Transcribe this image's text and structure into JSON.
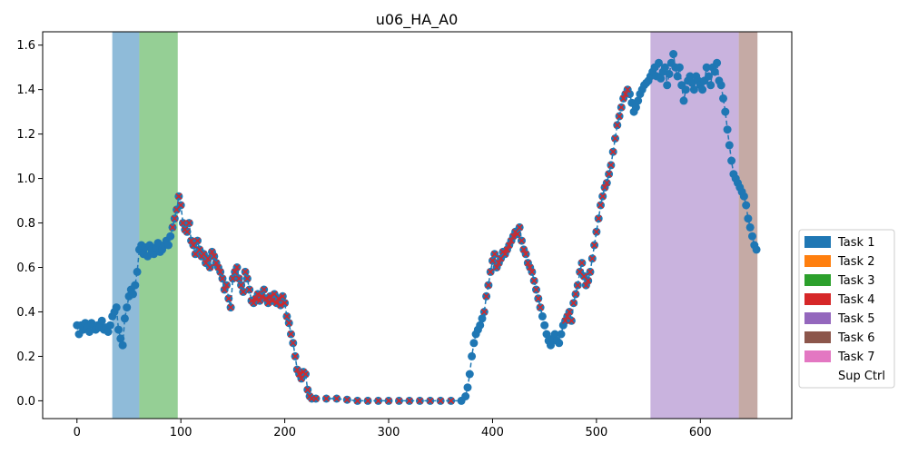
{
  "chart_data": {
    "type": "scatter",
    "title": "u06_HA_A0",
    "xlim": [
      -33,
      688
    ],
    "ylim": [
      -0.08,
      1.66
    ],
    "x_ticks": [
      0,
      100,
      200,
      300,
      400,
      500,
      600
    ],
    "y_ticks": [
      0.0,
      0.2,
      0.4,
      0.6,
      0.8,
      1.0,
      1.2,
      1.4,
      1.6
    ],
    "grid": false,
    "legend_position": "right",
    "colors": {
      "series": "#1f77b4",
      "task_marker": "#d62728"
    },
    "task_spans": [
      {
        "task": "Task 1",
        "start": 34,
        "end": 60,
        "color": "#1f77b4"
      },
      {
        "task": "Task 3",
        "start": 60,
        "end": 97,
        "color": "#2ca02c"
      },
      {
        "task": "Task 5",
        "start": 552,
        "end": 637,
        "color": "#9467bd"
      },
      {
        "task": "Task 6",
        "start": 637,
        "end": 655,
        "color": "#8c564b"
      }
    ],
    "legend": [
      {
        "label": "Task 1",
        "color": "#1f77b4"
      },
      {
        "label": "Task 2",
        "color": "#ff7f0e"
      },
      {
        "label": "Task 3",
        "color": "#2ca02c"
      },
      {
        "label": "Task 4",
        "color": "#d62728"
      },
      {
        "label": "Task 5",
        "color": "#9467bd"
      },
      {
        "label": "Task 6",
        "color": "#8c564b"
      },
      {
        "label": "Task 7",
        "color": "#e377c2"
      },
      {
        "label": "Sup Ctrl",
        "color": "#ffffff"
      }
    ],
    "series": [
      {
        "points": [
          [
            0,
            0.34
          ],
          [
            2,
            0.3
          ],
          [
            4,
            0.34
          ],
          [
            6,
            0.32
          ],
          [
            8,
            0.35
          ],
          [
            10,
            0.33
          ],
          [
            12,
            0.31
          ],
          [
            14,
            0.35
          ],
          [
            16,
            0.34
          ],
          [
            18,
            0.32
          ],
          [
            20,
            0.34
          ],
          [
            22,
            0.33
          ],
          [
            24,
            0.36
          ],
          [
            26,
            0.32
          ],
          [
            28,
            0.33
          ],
          [
            30,
            0.31
          ],
          [
            32,
            0.34
          ],
          [
            34,
            0.38
          ],
          [
            36,
            0.4
          ],
          [
            38,
            0.42
          ],
          [
            40,
            0.32
          ],
          [
            42,
            0.28
          ],
          [
            44,
            0.25
          ],
          [
            46,
            0.37
          ],
          [
            48,
            0.42
          ],
          [
            50,
            0.47
          ],
          [
            52,
            0.5
          ],
          [
            54,
            0.48
          ],
          [
            56,
            0.52
          ],
          [
            58,
            0.58
          ],
          [
            60,
            0.68
          ],
          [
            62,
            0.7
          ],
          [
            64,
            0.66
          ],
          [
            66,
            0.69
          ],
          [
            68,
            0.65
          ],
          [
            70,
            0.7
          ],
          [
            72,
            0.68
          ],
          [
            74,
            0.66
          ],
          [
            76,
            0.69
          ],
          [
            78,
            0.71
          ],
          [
            80,
            0.67
          ],
          [
            82,
            0.68
          ],
          [
            84,
            0.7
          ],
          [
            86,
            0.72
          ],
          [
            88,
            0.7
          ],
          [
            90,
            0.74
          ],
          [
            92,
            0.78
          ],
          [
            94,
            0.82
          ],
          [
            96,
            0.86
          ],
          [
            98,
            0.92
          ],
          [
            100,
            0.88
          ],
          [
            102,
            0.8
          ],
          [
            104,
            0.77
          ],
          [
            106,
            0.76
          ],
          [
            108,
            0.8
          ],
          [
            110,
            0.72
          ],
          [
            112,
            0.7
          ],
          [
            114,
            0.66
          ],
          [
            116,
            0.72
          ],
          [
            118,
            0.68
          ],
          [
            120,
            0.65
          ],
          [
            122,
            0.66
          ],
          [
            124,
            0.62
          ],
          [
            126,
            0.64
          ],
          [
            128,
            0.6
          ],
          [
            130,
            0.67
          ],
          [
            132,
            0.65
          ],
          [
            134,
            0.62
          ],
          [
            136,
            0.6
          ],
          [
            138,
            0.58
          ],
          [
            140,
            0.55
          ],
          [
            142,
            0.5
          ],
          [
            144,
            0.52
          ],
          [
            146,
            0.46
          ],
          [
            148,
            0.42
          ],
          [
            150,
            0.55
          ],
          [
            152,
            0.58
          ],
          [
            154,
            0.6
          ],
          [
            156,
            0.55
          ],
          [
            158,
            0.52
          ],
          [
            160,
            0.49
          ],
          [
            162,
            0.58
          ],
          [
            164,
            0.55
          ],
          [
            166,
            0.5
          ],
          [
            168,
            0.45
          ],
          [
            170,
            0.44
          ],
          [
            172,
            0.46
          ],
          [
            174,
            0.48
          ],
          [
            176,
            0.45
          ],
          [
            178,
            0.47
          ],
          [
            180,
            0.5
          ],
          [
            182,
            0.46
          ],
          [
            184,
            0.44
          ],
          [
            186,
            0.47
          ],
          [
            188,
            0.45
          ],
          [
            190,
            0.48
          ],
          [
            192,
            0.44
          ],
          [
            194,
            0.46
          ],
          [
            196,
            0.43
          ],
          [
            198,
            0.47
          ],
          [
            200,
            0.44
          ],
          [
            202,
            0.38
          ],
          [
            204,
            0.35
          ],
          [
            206,
            0.3
          ],
          [
            208,
            0.26
          ],
          [
            210,
            0.2
          ],
          [
            212,
            0.14
          ],
          [
            214,
            0.12
          ],
          [
            216,
            0.1
          ],
          [
            218,
            0.13
          ],
          [
            220,
            0.12
          ],
          [
            222,
            0.05
          ],
          [
            224,
            0.02
          ],
          [
            226,
            0.01
          ],
          [
            230,
            0.01
          ],
          [
            240,
            0.01
          ],
          [
            250,
            0.01
          ],
          [
            260,
            0.005
          ],
          [
            270,
            0.0
          ],
          [
            280,
            0.0
          ],
          [
            290,
            0.0
          ],
          [
            300,
            0.0
          ],
          [
            310,
            0.0
          ],
          [
            320,
            0.0
          ],
          [
            330,
            0.0
          ],
          [
            340,
            0.0
          ],
          [
            350,
            0.0
          ],
          [
            360,
            0.0
          ],
          [
            370,
            0.0
          ],
          [
            374,
            0.02
          ],
          [
            376,
            0.06
          ],
          [
            378,
            0.12
          ],
          [
            380,
            0.2
          ],
          [
            382,
            0.26
          ],
          [
            384,
            0.3
          ],
          [
            386,
            0.32
          ],
          [
            388,
            0.34
          ],
          [
            390,
            0.37
          ],
          [
            392,
            0.4
          ],
          [
            394,
            0.47
          ],
          [
            396,
            0.52
          ],
          [
            398,
            0.58
          ],
          [
            400,
            0.63
          ],
          [
            402,
            0.66
          ],
          [
            404,
            0.6
          ],
          [
            406,
            0.62
          ],
          [
            408,
            0.64
          ],
          [
            410,
            0.67
          ],
          [
            412,
            0.66
          ],
          [
            414,
            0.68
          ],
          [
            416,
            0.7
          ],
          [
            418,
            0.72
          ],
          [
            420,
            0.74
          ],
          [
            422,
            0.76
          ],
          [
            424,
            0.75
          ],
          [
            426,
            0.78
          ],
          [
            428,
            0.72
          ],
          [
            430,
            0.68
          ],
          [
            432,
            0.66
          ],
          [
            434,
            0.62
          ],
          [
            436,
            0.6
          ],
          [
            438,
            0.58
          ],
          [
            440,
            0.54
          ],
          [
            442,
            0.5
          ],
          [
            444,
            0.46
          ],
          [
            446,
            0.42
          ],
          [
            448,
            0.38
          ],
          [
            450,
            0.34
          ],
          [
            452,
            0.3
          ],
          [
            454,
            0.27
          ],
          [
            456,
            0.25
          ],
          [
            458,
            0.28
          ],
          [
            460,
            0.3
          ],
          [
            462,
            0.27
          ],
          [
            464,
            0.26
          ],
          [
            466,
            0.3
          ],
          [
            468,
            0.34
          ],
          [
            470,
            0.36
          ],
          [
            472,
            0.38
          ],
          [
            474,
            0.4
          ],
          [
            476,
            0.36
          ],
          [
            478,
            0.44
          ],
          [
            480,
            0.48
          ],
          [
            482,
            0.52
          ],
          [
            484,
            0.58
          ],
          [
            486,
            0.62
          ],
          [
            488,
            0.56
          ],
          [
            490,
            0.52
          ],
          [
            492,
            0.54
          ],
          [
            494,
            0.58
          ],
          [
            496,
            0.64
          ],
          [
            498,
            0.7
          ],
          [
            500,
            0.76
          ],
          [
            502,
            0.82
          ],
          [
            504,
            0.88
          ],
          [
            506,
            0.92
          ],
          [
            508,
            0.96
          ],
          [
            510,
            0.98
          ],
          [
            512,
            1.02
          ],
          [
            514,
            1.06
          ],
          [
            516,
            1.12
          ],
          [
            518,
            1.18
          ],
          [
            520,
            1.24
          ],
          [
            522,
            1.28
          ],
          [
            524,
            1.32
          ],
          [
            526,
            1.36
          ],
          [
            528,
            1.38
          ],
          [
            530,
            1.4
          ],
          [
            532,
            1.38
          ],
          [
            534,
            1.34
          ],
          [
            536,
            1.3
          ],
          [
            538,
            1.32
          ],
          [
            540,
            1.35
          ],
          [
            542,
            1.38
          ],
          [
            544,
            1.4
          ],
          [
            546,
            1.42
          ],
          [
            548,
            1.43
          ],
          [
            550,
            1.44
          ],
          [
            552,
            1.46
          ],
          [
            554,
            1.48
          ],
          [
            556,
            1.5
          ],
          [
            558,
            1.46
          ],
          [
            560,
            1.52
          ],
          [
            562,
            1.45
          ],
          [
            564,
            1.48
          ],
          [
            566,
            1.5
          ],
          [
            568,
            1.42
          ],
          [
            570,
            1.47
          ],
          [
            572,
            1.52
          ],
          [
            574,
            1.56
          ],
          [
            576,
            1.5
          ],
          [
            578,
            1.46
          ],
          [
            580,
            1.5
          ],
          [
            582,
            1.42
          ],
          [
            584,
            1.35
          ],
          [
            586,
            1.4
          ],
          [
            588,
            1.44
          ],
          [
            590,
            1.46
          ],
          [
            592,
            1.43
          ],
          [
            594,
            1.4
          ],
          [
            596,
            1.46
          ],
          [
            598,
            1.44
          ],
          [
            600,
            1.42
          ],
          [
            602,
            1.4
          ],
          [
            604,
            1.44
          ],
          [
            606,
            1.5
          ],
          [
            608,
            1.46
          ],
          [
            610,
            1.42
          ],
          [
            612,
            1.5
          ],
          [
            614,
            1.48
          ],
          [
            616,
            1.52
          ],
          [
            618,
            1.44
          ],
          [
            620,
            1.42
          ],
          [
            622,
            1.36
          ],
          [
            624,
            1.3
          ],
          [
            626,
            1.22
          ],
          [
            628,
            1.15
          ],
          [
            630,
            1.08
          ],
          [
            632,
            1.02
          ],
          [
            634,
            1.0
          ],
          [
            636,
            0.98
          ],
          [
            638,
            0.96
          ],
          [
            640,
            0.94
          ],
          [
            642,
            0.92
          ],
          [
            644,
            0.88
          ],
          [
            646,
            0.82
          ],
          [
            648,
            0.78
          ],
          [
            650,
            0.74
          ],
          [
            652,
            0.7
          ],
          [
            654,
            0.68
          ]
        ]
      }
    ],
    "task4_range": [
      92,
      530
    ]
  }
}
